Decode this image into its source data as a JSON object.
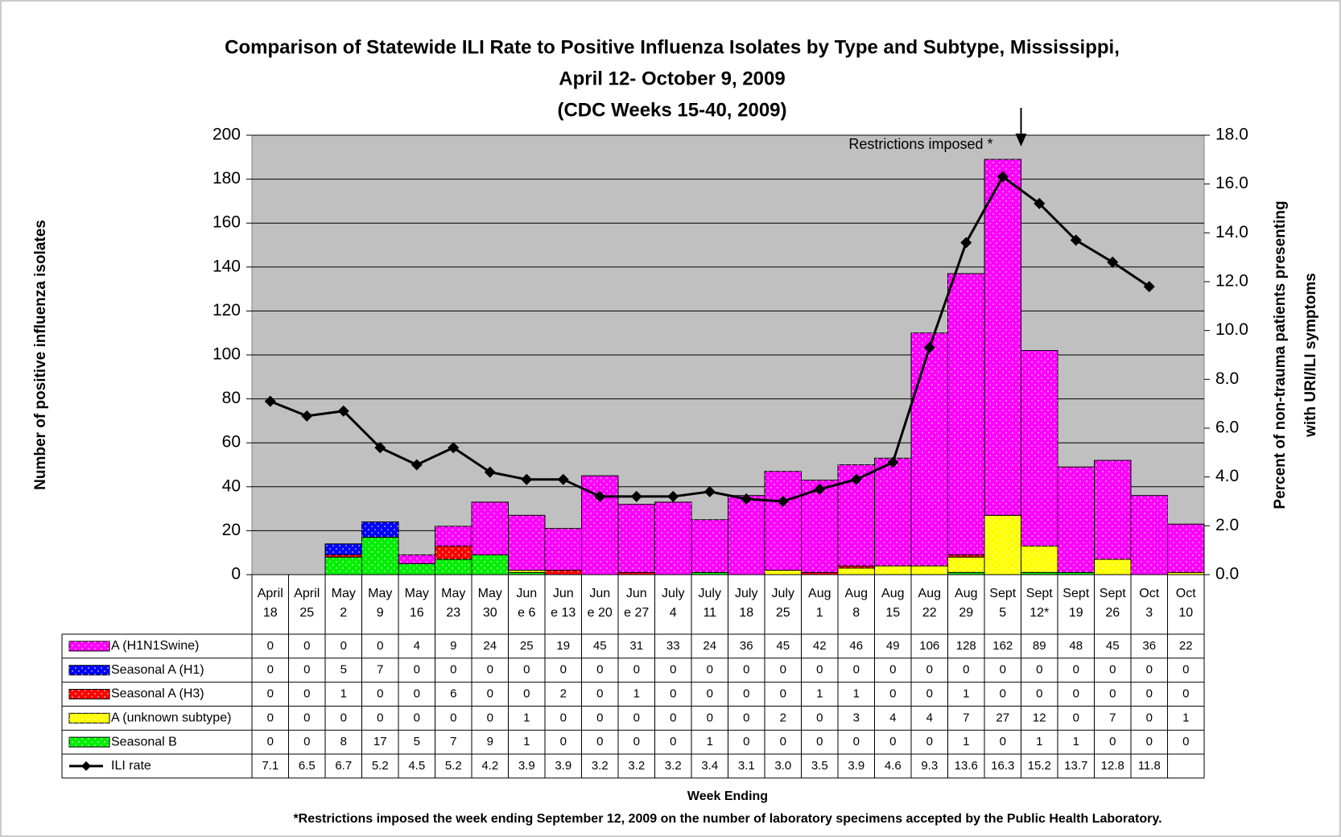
{
  "chart_data": {
    "type": "bar",
    "title": [
      "Comparison of Statewide ILI Rate to Positive Influenza Isolates by Type and Subtype, Mississippi,",
      "April 12- October 9, 2009",
      "(CDC Weeks 15-40, 2009)"
    ],
    "annotation": "Restrictions imposed *",
    "ylabel": "Number of positive influenza isolates",
    "y2label": [
      "Percent of non-trauma patients presenting",
      "with URI/ILI symptoms"
    ],
    "xlabel": "Week Ending",
    "footnote": "*Restrictions imposed the week ending September 12, 2009 on the number of laboratory specimens accepted by the Public Health Laboratory.",
    "categories": [
      [
        "April",
        "18"
      ],
      [
        "April",
        "25"
      ],
      [
        "May",
        "2"
      ],
      [
        "May",
        "9"
      ],
      [
        "May",
        "16"
      ],
      [
        "May",
        "23"
      ],
      [
        "May",
        "30"
      ],
      [
        "Jun",
        "e 6"
      ],
      [
        "Jun",
        "e 13"
      ],
      [
        "Jun",
        "e 20"
      ],
      [
        "Jun",
        "e 27"
      ],
      [
        "July",
        "4"
      ],
      [
        "July",
        "11"
      ],
      [
        "July",
        "18"
      ],
      [
        "July",
        "25"
      ],
      [
        "Aug",
        "1"
      ],
      [
        "Aug",
        "8"
      ],
      [
        "Aug",
        "15"
      ],
      [
        "Aug",
        "22"
      ],
      [
        "Aug",
        "29"
      ],
      [
        "Sept",
        "5"
      ],
      [
        "Sept",
        "12*"
      ],
      [
        "Sept",
        "19"
      ],
      [
        "Sept",
        "26"
      ],
      [
        "Oct",
        "3"
      ],
      [
        "Oct",
        "10"
      ]
    ],
    "series": [
      {
        "name": "A (H1N1Swine)",
        "color": "#ff00ff",
        "values": [
          0,
          0,
          0,
          0,
          4,
          9,
          24,
          25,
          19,
          45,
          31,
          33,
          24,
          36,
          45,
          42,
          46,
          49,
          106,
          128,
          162,
          89,
          48,
          45,
          36,
          22
        ]
      },
      {
        "name": "Seasonal A (H1)",
        "color": "#0000ff",
        "values": [
          0,
          0,
          5,
          7,
          0,
          0,
          0,
          0,
          0,
          0,
          0,
          0,
          0,
          0,
          0,
          0,
          0,
          0,
          0,
          0,
          0,
          0,
          0,
          0,
          0,
          0
        ]
      },
      {
        "name": "Seasonal A (H3)",
        "color": "#ff0000",
        "values": [
          0,
          0,
          1,
          0,
          0,
          6,
          0,
          0,
          2,
          0,
          1,
          0,
          0,
          0,
          0,
          1,
          1,
          0,
          0,
          1,
          0,
          0,
          0,
          0,
          0,
          0
        ]
      },
      {
        "name": "A (unknown subtype)",
        "color": "#ffff00",
        "values": [
          0,
          0,
          0,
          0,
          0,
          0,
          0,
          1,
          0,
          0,
          0,
          0,
          0,
          0,
          2,
          0,
          3,
          4,
          4,
          7,
          27,
          12,
          0,
          7,
          0,
          1
        ]
      },
      {
        "name": "Seasonal B",
        "color": "#00ee00",
        "values": [
          0,
          0,
          8,
          17,
          5,
          7,
          9,
          1,
          0,
          0,
          0,
          0,
          1,
          0,
          0,
          0,
          0,
          0,
          0,
          1,
          0,
          1,
          1,
          0,
          0,
          0
        ]
      },
      {
        "name": "ILI rate",
        "type": "line",
        "axis": "y2",
        "color": "#000000",
        "values": [
          7.1,
          6.5,
          6.7,
          5.2,
          4.5,
          5.2,
          4.2,
          3.9,
          3.9,
          3.2,
          3.2,
          3.2,
          3.4,
          3.1,
          3.0,
          3.5,
          3.9,
          4.6,
          9.3,
          13.6,
          16.3,
          15.2,
          13.7,
          12.8,
          11.8,
          null
        ],
        "value_labels": [
          "7.1",
          "6.5",
          "6.7",
          "5.2",
          "4.5",
          "5.2",
          "4.2",
          "3.9",
          "3.9",
          "3.2",
          "3.2",
          "3.2",
          "3.4",
          "3.1",
          "3.0",
          "3.5",
          "3.9",
          "4.6",
          "9.3",
          "13.6",
          "16.3",
          "15.2",
          "13.7",
          "12.8",
          "11.8",
          null
        ]
      }
    ],
    "ylim": [
      0,
      200
    ],
    "yticks": [
      0,
      20,
      40,
      60,
      80,
      100,
      120,
      140,
      160,
      180,
      200
    ],
    "y2lim": [
      0,
      18
    ],
    "y2ticks": [
      {
        "value": 0,
        "label": "0.0"
      },
      {
        "value": 2,
        "label": "2.0"
      },
      {
        "value": 4,
        "label": "4.0"
      },
      {
        "value": 6,
        "label": "6.0"
      },
      {
        "value": 8,
        "label": "8.0"
      },
      {
        "value": 10,
        "label": "10.0"
      },
      {
        "value": 12,
        "label": "12.0"
      },
      {
        "value": 14,
        "label": "14.0"
      },
      {
        "value": 16,
        "label": "16.0"
      },
      {
        "value": 18,
        "label": "18.0"
      }
    ],
    "annotation_index": 21,
    "grid": true
  }
}
